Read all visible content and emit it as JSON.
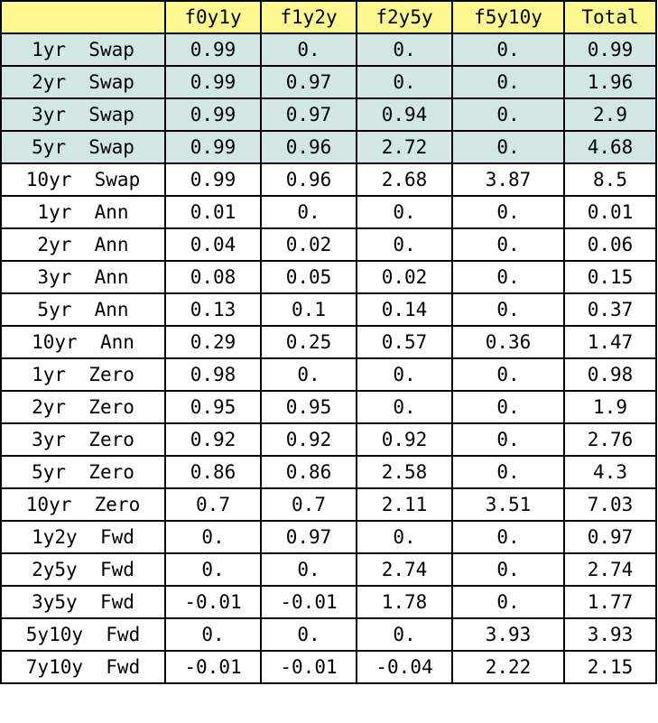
{
  "table": {
    "columns": [
      "",
      "f0y1y",
      "f1y2y",
      "f2y5y",
      "f5y10y",
      "Total"
    ],
    "highlight_color": "#d2e6e6",
    "header_color": "#fbf98f",
    "rows": [
      {
        "label": "1yr  Swap",
        "values": [
          "0.99",
          "0.",
          "0.",
          "0.",
          "0.99"
        ],
        "highlighted": true
      },
      {
        "label": "2yr  Swap",
        "values": [
          "0.99",
          "0.97",
          "0.",
          "0.",
          "1.96"
        ],
        "highlighted": true
      },
      {
        "label": "3yr  Swap",
        "values": [
          "0.99",
          "0.97",
          "0.94",
          "0.",
          "2.9"
        ],
        "highlighted": true
      },
      {
        "label": "5yr  Swap",
        "values": [
          "0.99",
          "0.96",
          "2.72",
          "0.",
          "4.68"
        ],
        "highlighted": true
      },
      {
        "label": "10yr  Swap",
        "values": [
          "0.99",
          "0.96",
          "2.68",
          "3.87",
          "8.5"
        ],
        "highlighted": false
      },
      {
        "label": "1yr  Ann",
        "values": [
          "0.01",
          "0.",
          "0.",
          "0.",
          "0.01"
        ],
        "highlighted": false
      },
      {
        "label": "2yr  Ann",
        "values": [
          "0.04",
          "0.02",
          "0.",
          "0.",
          "0.06"
        ],
        "highlighted": false
      },
      {
        "label": "3yr  Ann",
        "values": [
          "0.08",
          "0.05",
          "0.02",
          "0.",
          "0.15"
        ],
        "highlighted": false
      },
      {
        "label": "5yr  Ann",
        "values": [
          "0.13",
          "0.1",
          "0.14",
          "0.",
          "0.37"
        ],
        "highlighted": false
      },
      {
        "label": "10yr  Ann",
        "values": [
          "0.29",
          "0.25",
          "0.57",
          "0.36",
          "1.47"
        ],
        "highlighted": false
      },
      {
        "label": "1yr  Zero",
        "values": [
          "0.98",
          "0.",
          "0.",
          "0.",
          "0.98"
        ],
        "highlighted": false
      },
      {
        "label": "2yr  Zero",
        "values": [
          "0.95",
          "0.95",
          "0.",
          "0.",
          "1.9"
        ],
        "highlighted": false
      },
      {
        "label": "3yr  Zero",
        "values": [
          "0.92",
          "0.92",
          "0.92",
          "0.",
          "2.76"
        ],
        "highlighted": false
      },
      {
        "label": "5yr  Zero",
        "values": [
          "0.86",
          "0.86",
          "2.58",
          "0.",
          "4.3"
        ],
        "highlighted": false
      },
      {
        "label": "10yr  Zero",
        "values": [
          "0.7",
          "0.7",
          "2.11",
          "3.51",
          "7.03"
        ],
        "highlighted": false
      },
      {
        "label": "1y2y  Fwd",
        "values": [
          "0.",
          "0.97",
          "0.",
          "0.",
          "0.97"
        ],
        "highlighted": false
      },
      {
        "label": "2y5y  Fwd",
        "values": [
          "0.",
          "0.",
          "2.74",
          "0.",
          "2.74"
        ],
        "highlighted": false
      },
      {
        "label": "3y5y  Fwd",
        "values": [
          "-0.01",
          "-0.01",
          "1.78",
          "0.",
          "1.77"
        ],
        "highlighted": false
      },
      {
        "label": "5y10y  Fwd",
        "values": [
          "0.",
          "0.",
          "0.",
          "3.93",
          "3.93"
        ],
        "highlighted": false
      },
      {
        "label": "7y10y  Fwd",
        "values": [
          "-0.01",
          "-0.01",
          "-0.04",
          "2.22",
          "2.15"
        ],
        "highlighted": false
      }
    ]
  }
}
